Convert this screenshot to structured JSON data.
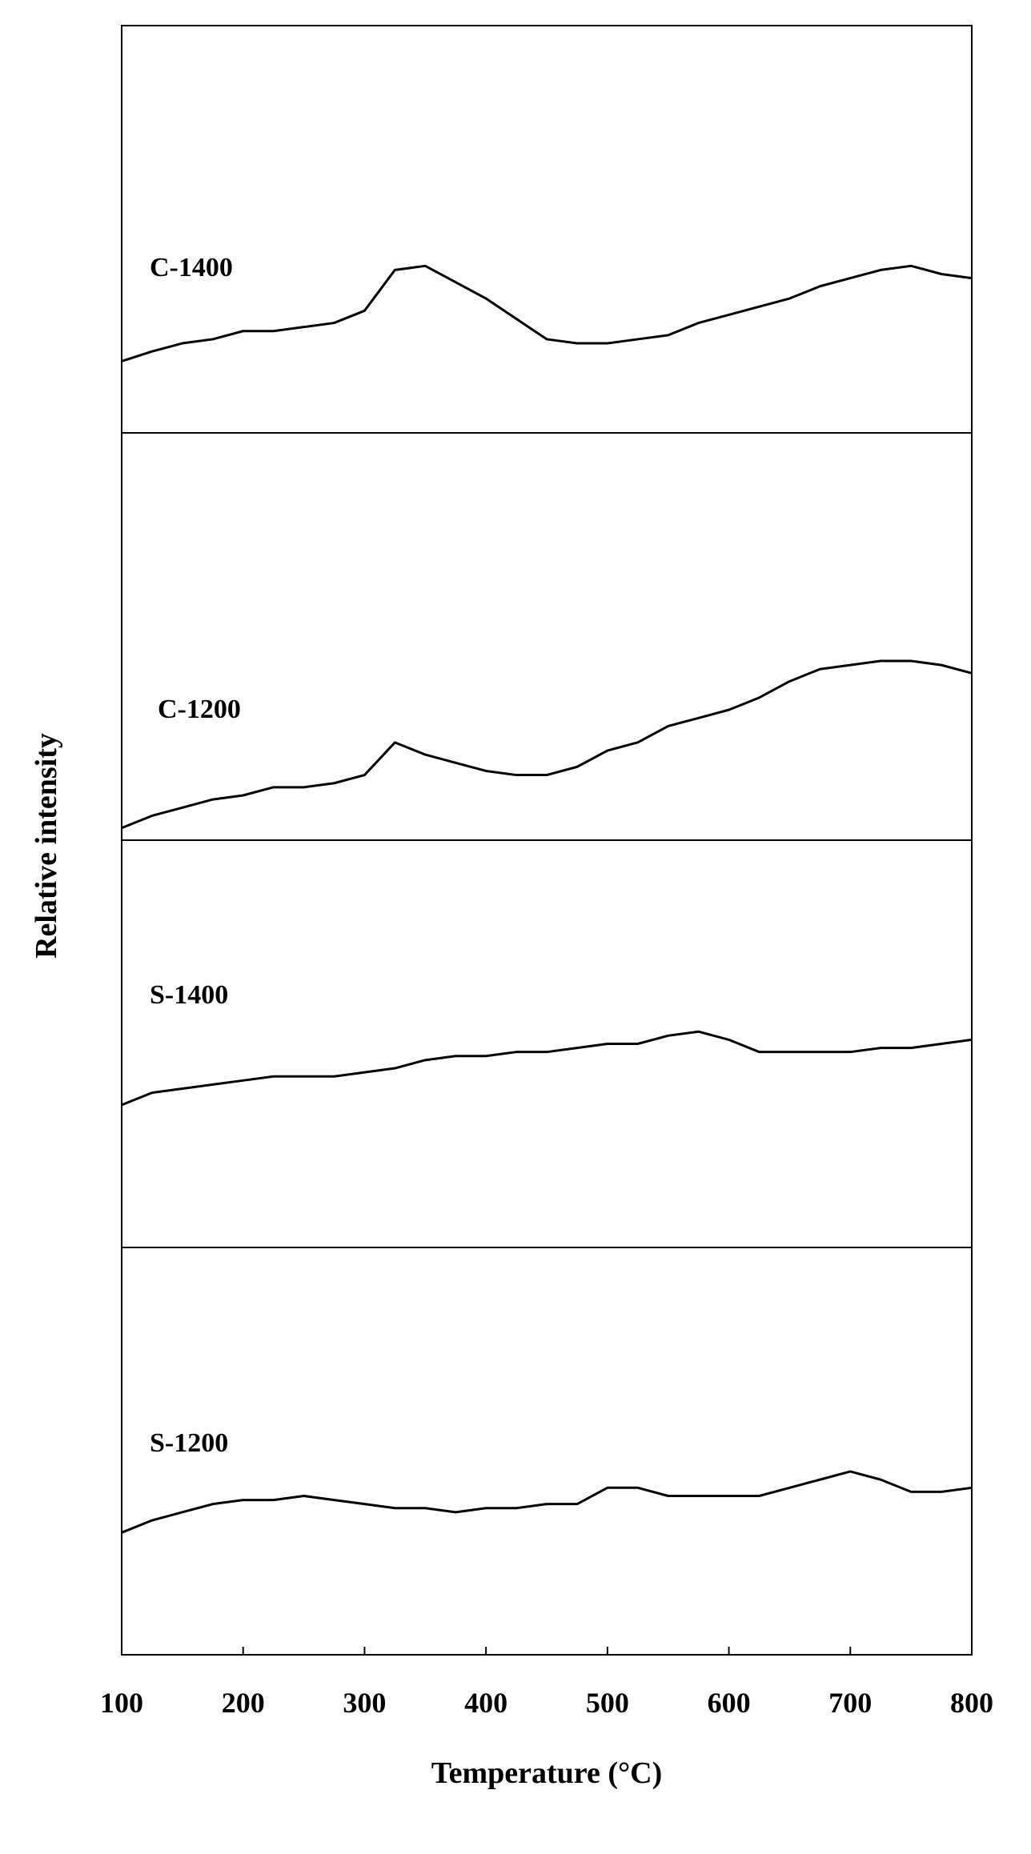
{
  "chart_data": {
    "type": "line",
    "xlabel": "Temperature (°C)",
    "ylabel": "Relative intensity",
    "x": [
      100,
      125,
      150,
      175,
      200,
      225,
      250,
      275,
      300,
      325,
      350,
      375,
      400,
      425,
      450,
      475,
      500,
      525,
      550,
      575,
      600,
      625,
      650,
      675,
      700,
      725,
      750,
      775,
      800
    ],
    "xlim": [
      100,
      800
    ],
    "xticks": [
      100,
      200,
      300,
      400,
      500,
      600,
      700,
      800
    ],
    "ylim": [
      0,
      100
    ],
    "series": [
      {
        "name": "C-1400",
        "color": "#000000",
        "values": [
          17.6,
          20,
          22,
          23,
          25,
          25,
          26,
          27,
          30,
          40,
          41,
          37,
          33,
          28,
          23,
          22,
          22,
          23,
          24,
          27,
          29,
          31,
          33,
          36,
          38,
          40,
          41,
          39,
          38
        ]
      },
      {
        "name": "C-1200",
        "color": "#000000",
        "values": [
          3,
          6,
          8,
          10,
          11,
          13,
          13,
          14,
          16,
          24,
          21,
          19,
          17,
          16,
          16,
          18,
          22,
          24,
          28,
          30,
          32,
          35,
          39,
          42,
          43,
          44,
          44,
          43,
          41
        ]
      },
      {
        "name": "S-1400",
        "color": "#000000",
        "values": [
          35,
          38,
          39,
          40,
          41,
          42,
          42,
          42,
          43,
          44,
          46,
          47,
          47,
          48,
          48,
          49,
          50,
          50,
          52,
          53,
          51,
          48,
          48,
          48,
          48,
          49,
          49,
          50,
          51
        ]
      },
      {
        "name": "S-1200",
        "color": "#000000",
        "values": [
          30,
          33,
          35,
          37,
          38,
          38,
          39,
          38,
          37,
          36,
          36,
          35,
          36,
          36,
          37,
          37,
          41,
          41,
          39,
          39,
          39,
          39,
          41,
          43,
          45,
          43,
          40,
          40,
          41
        ]
      }
    ]
  }
}
